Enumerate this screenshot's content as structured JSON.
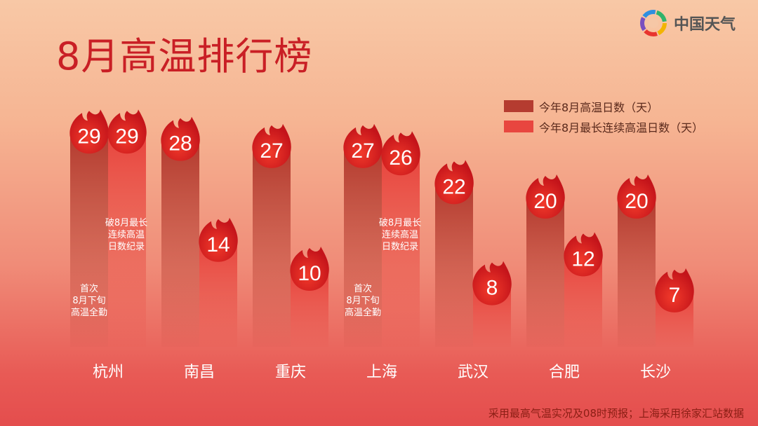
{
  "title": "8月高温排行榜",
  "brand": {
    "name": "中国天气",
    "logo_icon": "china-weather-logo-icon"
  },
  "legend": [
    {
      "label": "今年8月高温日数（天）",
      "color": "#b53c30"
    },
    {
      "label": "今年8月最长连续高温日数（天）",
      "color": "#e8463f"
    }
  ],
  "footnote": "采用最高气温实况及08时预报；上海采用徐家汇站数据",
  "chart_data": {
    "type": "bar",
    "title": "8月高温排行榜",
    "categories": [
      "杭州",
      "南昌",
      "重庆",
      "上海",
      "武汉",
      "合肥",
      "长沙"
    ],
    "series": [
      {
        "name": "今年8月高温日数（天）",
        "values": [
          29,
          28,
          27,
          27,
          22,
          20,
          20
        ],
        "color": "#b53c30"
      },
      {
        "name": "今年8月最长连续高温日数（天）",
        "values": [
          29,
          14,
          10,
          26,
          8,
          12,
          7
        ],
        "color": "#e8463f"
      }
    ],
    "annotations": [
      {
        "category": "杭州",
        "series": 0,
        "lines": [
          "首次",
          "8月下旬",
          "高温全勤"
        ]
      },
      {
        "category": "杭州",
        "series": 1,
        "lines": [
          "破8月最长",
          "连续高温",
          "日数纪录"
        ]
      },
      {
        "category": "上海",
        "series": 0,
        "lines": [
          "首次",
          "8月下旬",
          "高温全勤"
        ]
      },
      {
        "category": "上海",
        "series": 1,
        "lines": [
          "破8月最长",
          "连续高温",
          "日数纪录"
        ]
      }
    ],
    "icon": "flame-icon"
  }
}
